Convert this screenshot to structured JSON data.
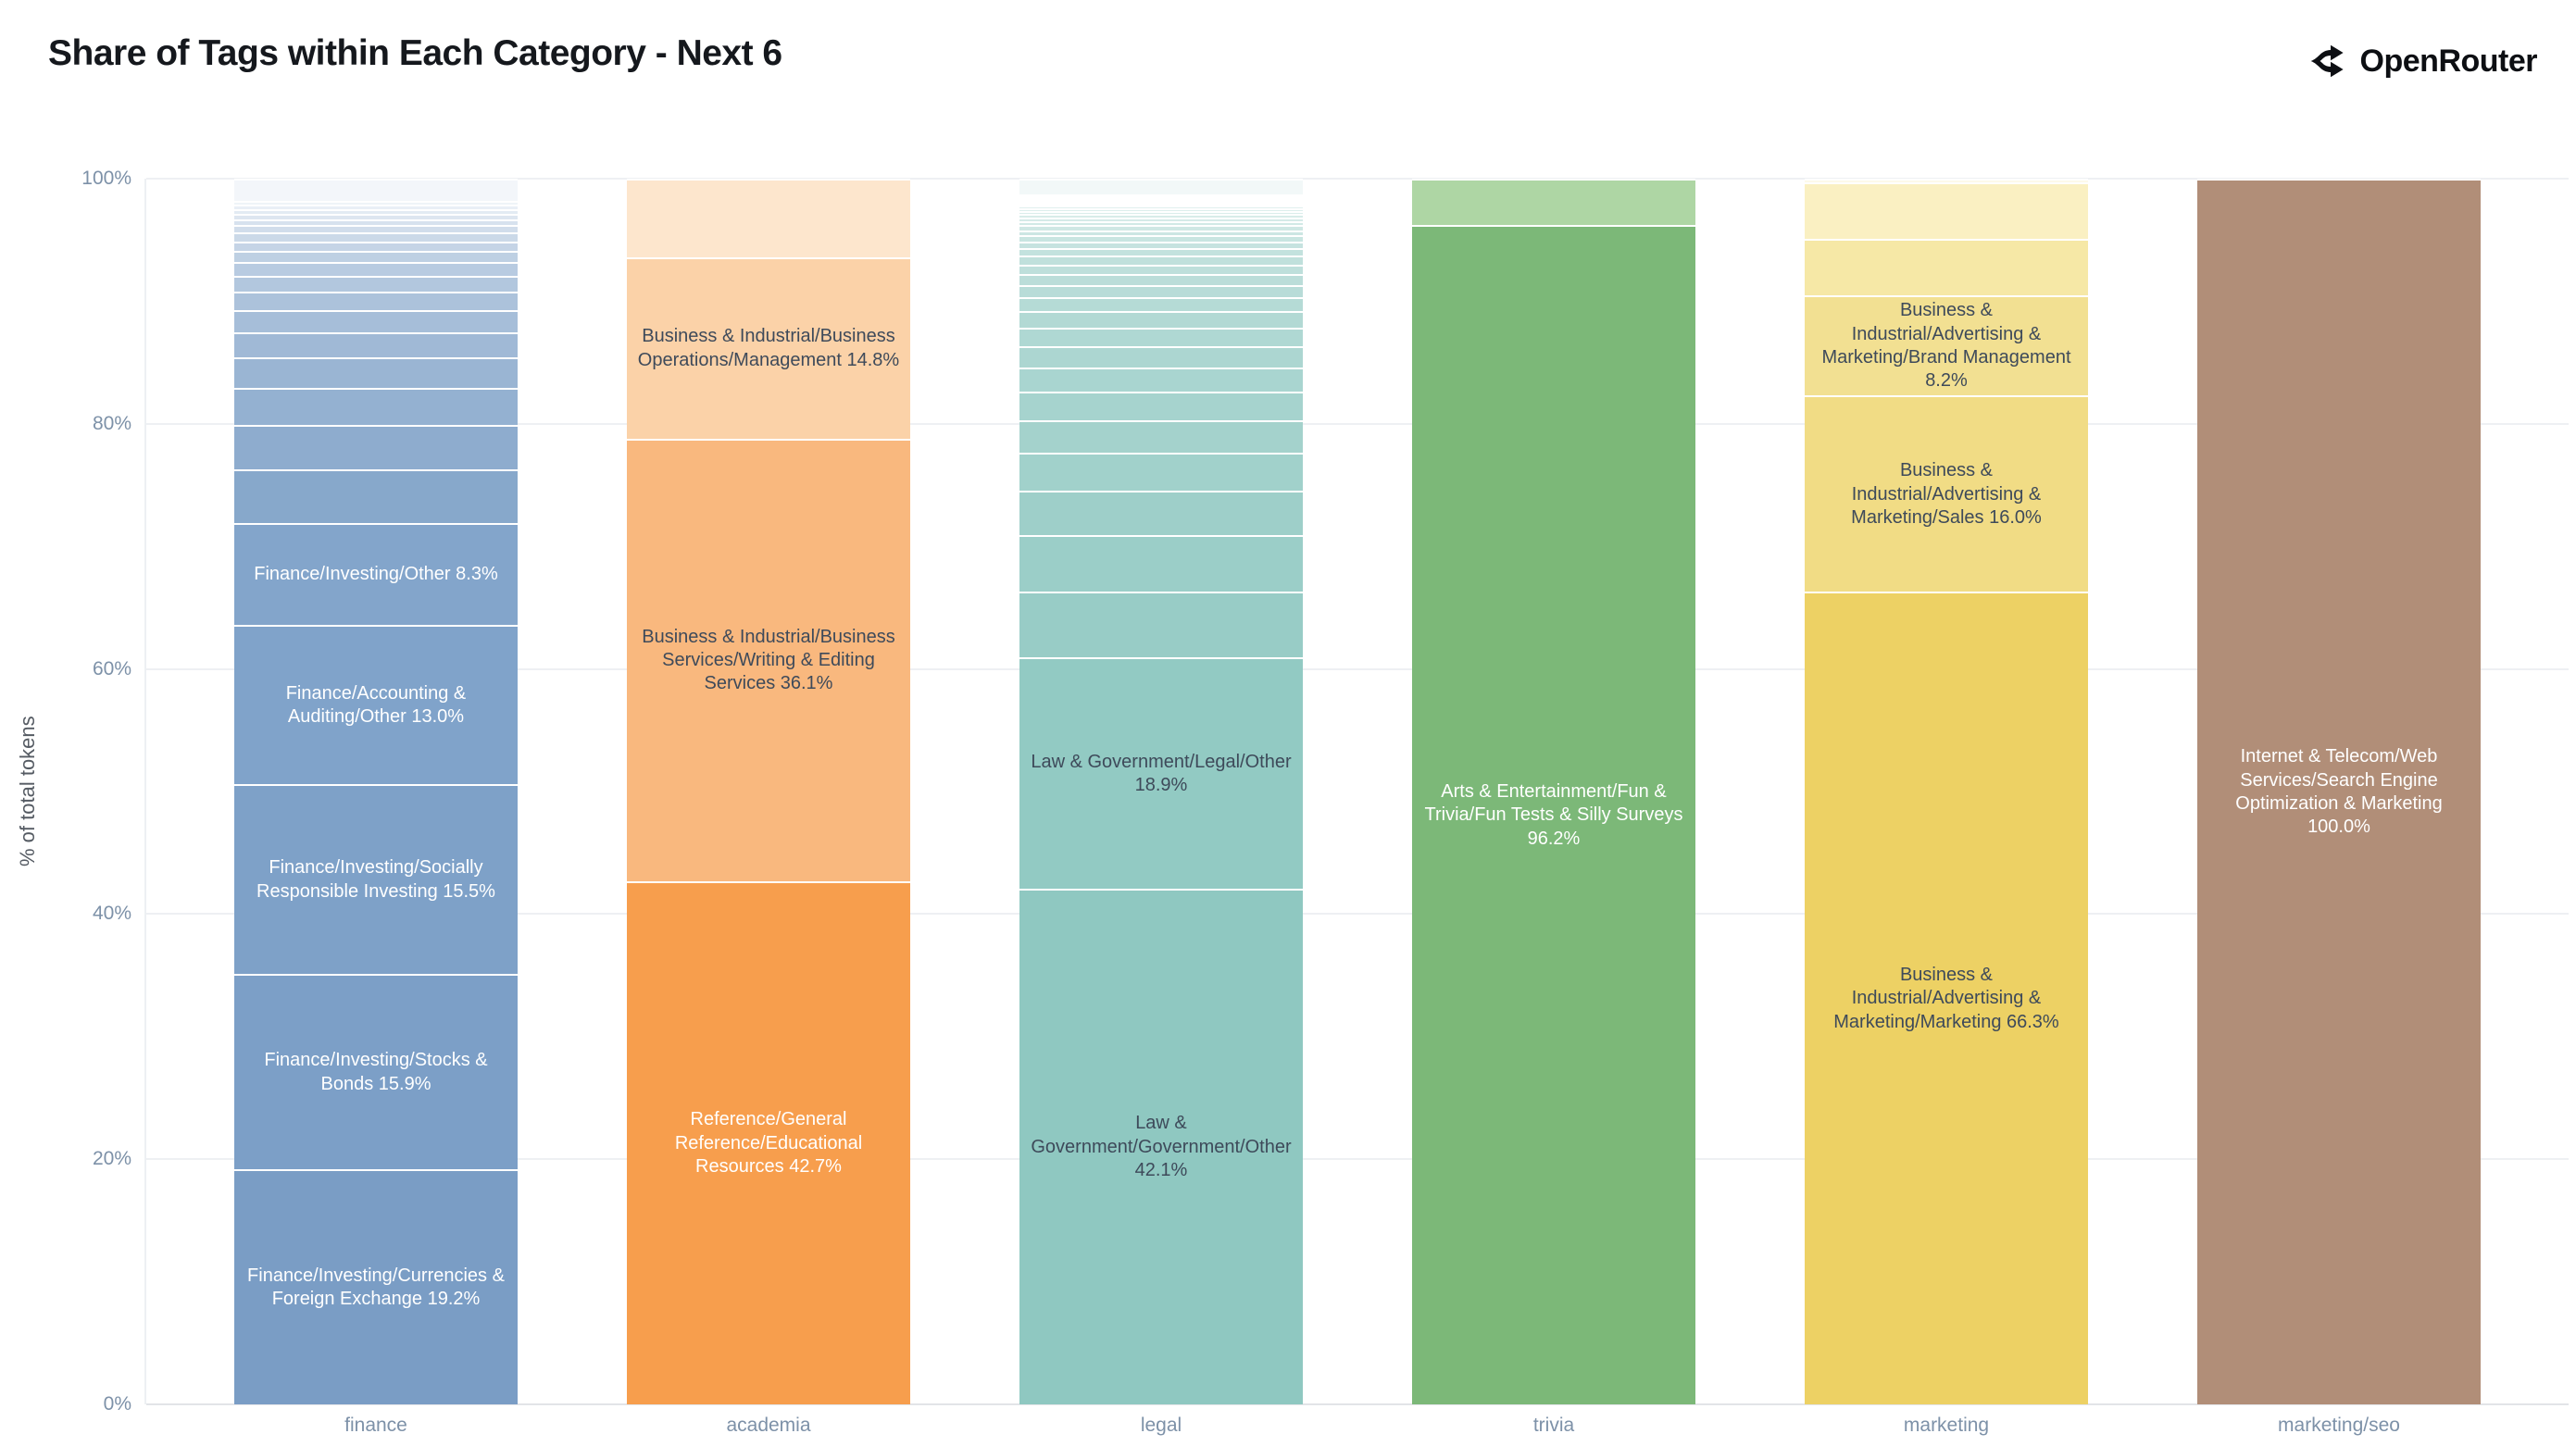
{
  "header": {
    "title": "Share of Tags within Each Category - Next 6",
    "brand": "OpenRouter"
  },
  "y_axis": {
    "title": "% of total tokens",
    "ticks": [
      {
        "label": "0%",
        "value": 0
      },
      {
        "label": "20%",
        "value": 20
      },
      {
        "label": "40%",
        "value": 40
      },
      {
        "label": "60%",
        "value": 60
      },
      {
        "label": "80%",
        "value": 80
      },
      {
        "label": "100%",
        "value": 100
      }
    ]
  },
  "chart_data": {
    "type": "bar",
    "stacked": true,
    "title": "Share of Tags within Each Category - Next 6",
    "xlabel": "",
    "ylabel": "% of total tokens",
    "ylim": [
      0,
      100
    ],
    "grid": true,
    "categories": [
      "finance",
      "academia",
      "legal",
      "trivia",
      "marketing",
      "marketing/seo"
    ],
    "bars": [
      {
        "category": "finance",
        "segments": [
          {
            "label": "Finance/Investing/Currencies & Foreign Exchange 19.2%",
            "value": 19.2,
            "color": "#7a9dc5",
            "text_color": "#ffffff"
          },
          {
            "label": "Finance/Investing/Stocks & Bonds 15.9%",
            "value": 15.9,
            "color": "#7c9fc7",
            "text_color": "#ffffff"
          },
          {
            "label": "Finance/Investing/Socially Responsible Investing 15.5%",
            "value": 15.5,
            "color": "#7ea1c8",
            "text_color": "#ffffff"
          },
          {
            "label": "Finance/Accounting & Auditing/Other 13.0%",
            "value": 13.0,
            "color": "#80a3ca",
            "text_color": "#ffffff"
          },
          {
            "label": "Finance/Investing/Other 8.3%",
            "value": 8.3,
            "color": "#83a5cb",
            "text_color": "#ffffff"
          }
        ],
        "stripes": {
          "base_color": "#7da0c7",
          "values": [
            4.4,
            3.6,
            3.0,
            2.5,
            2.1,
            1.8,
            1.5,
            1.3,
            1.1,
            0.9,
            0.8,
            0.7,
            0.6,
            0.5,
            0.45,
            0.4,
            0.35,
            0.3
          ]
        },
        "cap": {
          "value": 1.8,
          "color": "#f3f6fa"
        }
      },
      {
        "category": "academia",
        "segments": [
          {
            "label": "Reference/General Reference/Educational Resources 42.7%",
            "value": 42.7,
            "color": "#f79e4d",
            "text_color": "#ffffff"
          },
          {
            "label": "Business & Industrial/Business Services/Writing & Editing Services 36.1%",
            "value": 36.1,
            "color": "#f9b87e",
            "text_color": "#3e4a5a"
          },
          {
            "label": "Business & Industrial/Business Operations/Management 14.8%",
            "value": 14.8,
            "color": "#fbd2a8",
            "text_color": "#3e4a5a"
          },
          {
            "label": "",
            "value": 6.4,
            "color": "#fde6cd"
          }
        ]
      },
      {
        "category": "legal",
        "segments": [
          {
            "label": "Law & Government/Government/Other 42.1%",
            "value": 42.1,
            "color": "#8fc8c1",
            "text_color": "#3e4a5a"
          },
          {
            "label": "Law & Government/Legal/Other 18.9%",
            "value": 18.9,
            "color": "#92cac3",
            "text_color": "#3e4a5a"
          }
        ],
        "stripes": {
          "base_color": "#8fc8c1",
          "values": [
            5.4,
            4.6,
            3.6,
            3.1,
            2.7,
            2.3,
            2.0,
            1.75,
            1.5,
            1.3,
            1.15,
            1.0,
            0.9,
            0.8,
            0.7,
            0.6,
            0.55,
            0.5,
            0.45,
            0.4,
            0.35,
            0.3,
            0.28,
            0.25,
            0.22,
            0.2,
            0.18,
            0.16,
            0.15,
            0.13,
            0.12,
            0.1
          ]
        },
        "cap": {
          "value": 1.26,
          "color": "#f2f8f8"
        }
      },
      {
        "category": "trivia",
        "segments": [
          {
            "label": "Arts & Entertainment/Fun & Trivia/Fun Tests & Silly Surveys 96.2%",
            "value": 96.2,
            "color": "#7cb878",
            "text_color": "#ffffff"
          },
          {
            "label": "",
            "value": 3.8,
            "color": "#aed6a4"
          }
        ]
      },
      {
        "category": "marketing",
        "segments": [
          {
            "label": "Business & Industrial/Advertising & Marketing/Marketing 66.3%",
            "value": 66.3,
            "color": "#edd164",
            "text_color": "#3e4a5a"
          },
          {
            "label": "Business & Industrial/Advertising & Marketing/Sales 16.0%",
            "value": 16.0,
            "color": "#f1dc85",
            "text_color": "#3e4a5a"
          },
          {
            "label": "Business & Industrial/Advertising & Marketing/Brand Management 8.2%",
            "value": 8.2,
            "color": "#f2e092",
            "text_color": "#3e4a5a"
          },
          {
            "label": "",
            "value": 4.6,
            "color": "#f6e8a6"
          },
          {
            "label": "",
            "value": 4.6,
            "color": "#faf0c2"
          },
          {
            "label": "",
            "value": 0.3,
            "color": "#fdfaea"
          }
        ]
      },
      {
        "category": "marketing/seo",
        "segments": [
          {
            "label": "Internet & Telecom/Web Services/Search Engine Optimization & Marketing 100.0%",
            "value": 100.0,
            "color": "#b18e78",
            "text_color": "#ffffff"
          }
        ]
      }
    ]
  }
}
